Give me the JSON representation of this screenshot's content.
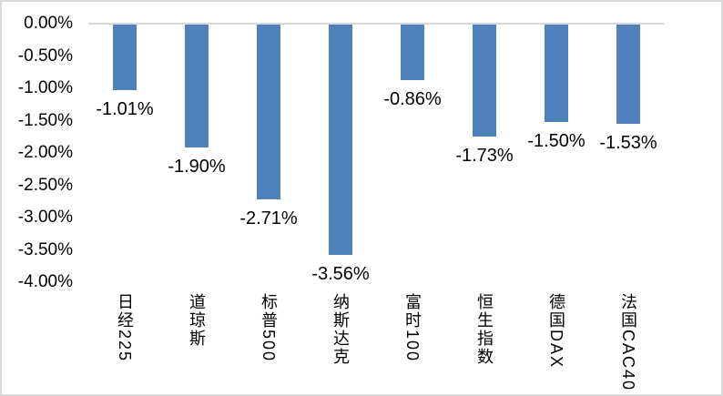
{
  "chart_data": {
    "type": "bar",
    "title": "",
    "xlabel": "",
    "ylabel": "",
    "categories": [
      "日经225",
      "道琼斯",
      "标普500",
      "纳斯达克",
      "富时100",
      "恒生指数",
      "德国DAX",
      "法国CAC40"
    ],
    "values": [
      -1.01,
      -1.9,
      -2.71,
      -3.56,
      -0.86,
      -1.73,
      -1.5,
      -1.53
    ],
    "data_labels": [
      "-1.01%",
      "-1.90%",
      "-2.71%",
      "-3.56%",
      "-0.86%",
      "-1.73%",
      "-1.50%",
      "-1.53%"
    ],
    "y_ticks": [
      "0.00%",
      "-0.50%",
      "-1.00%",
      "-1.50%",
      "-2.00%",
      "-2.50%",
      "-3.00%",
      "-3.50%",
      "-4.00%"
    ],
    "y_tick_values": [
      0,
      -0.5,
      -1.0,
      -1.5,
      -2.0,
      -2.5,
      -3.0,
      -3.5,
      -4.0
    ],
    "ylim": [
      -4.0,
      0.0
    ],
    "grid": false,
    "legend": false,
    "colors": {
      "bar": "#4F81BD",
      "axis_line": "#D9D9D9",
      "border": "#D9D9D9",
      "text": "#000000",
      "background": "#FFFFFF"
    }
  }
}
